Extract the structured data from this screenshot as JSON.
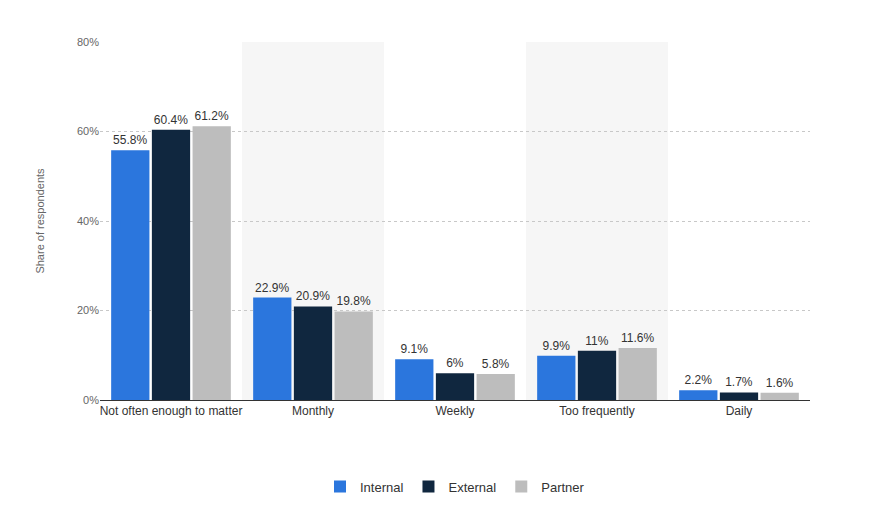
{
  "chart_data": {
    "type": "bar",
    "y_label": "Share of respondents",
    "categories": [
      "Not often enough to matter",
      "Monthly",
      "Weekly",
      "Too frequently",
      "Daily"
    ],
    "series": [
      {
        "name": "Internal",
        "color": "#2b76dd",
        "values": [
          55.8,
          22.9,
          9.1,
          9.9,
          2.2
        ],
        "value_labels": [
          "55.8%",
          "22.9%",
          "9.1%",
          "9.9%",
          "2.2%"
        ]
      },
      {
        "name": "External",
        "color": "#10273f",
        "values": [
          60.4,
          20.9,
          6,
          11,
          1.7
        ],
        "value_labels": [
          "60.4%",
          "20.9%",
          "6%",
          "11%",
          "1.7%"
        ]
      },
      {
        "name": "Partner",
        "color": "#bdbdbd",
        "values": [
          61.2,
          19.8,
          5.8,
          11.6,
          1.6
        ],
        "value_labels": [
          "61.2%",
          "19.8%",
          "5.8%",
          "11.6%",
          "1.6%"
        ]
      }
    ],
    "ylim": [
      0,
      80
    ],
    "yticks": [
      {
        "value": 0,
        "label": "0%"
      },
      {
        "value": 20,
        "label": "20%"
      },
      {
        "value": 40,
        "label": "40%"
      },
      {
        "value": 60,
        "label": "60%"
      },
      {
        "value": 80,
        "label": "80%"
      }
    ],
    "grid": true,
    "legend": "bottom",
    "data_labels": true
  }
}
